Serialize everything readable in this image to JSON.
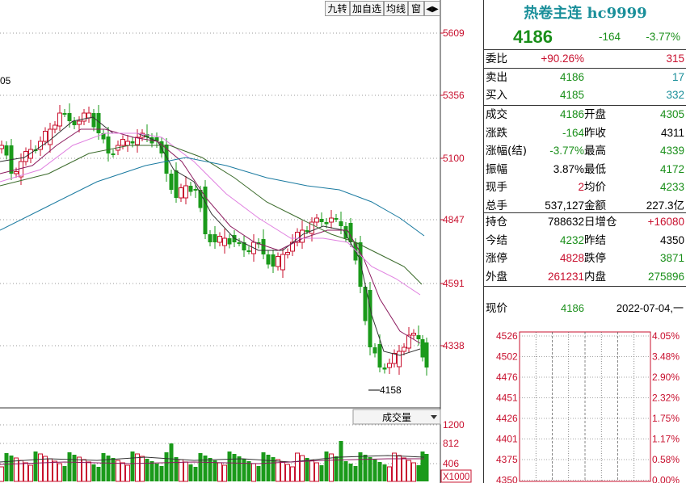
{
  "toolbar": {
    "btn1": "九转",
    "btn2": "加自选",
    "btn3": "均线",
    "btn4": "窗",
    "btn5": "◀▶"
  },
  "chart": {
    "y_labels": [
      "5609",
      "5356",
      "5100",
      "4847",
      "4591",
      "4338"
    ],
    "left_label": "05",
    "low_marker": "4158",
    "volume_dropdown": "成交量",
    "vol_labels": [
      "1200",
      "812",
      "406"
    ],
    "vol_unit": "X1000"
  },
  "panel": {
    "title": "热卷主连 hc9999",
    "price": "4186",
    "change": "-164",
    "change_pct": "-3.77%",
    "weibi_label": "委比",
    "weibi_value": "+90.26%",
    "weibi_diff": "315",
    "sell_label": "卖出",
    "sell_price": "4186",
    "sell_vol": "17",
    "buy_label": "买入",
    "buy_price": "4185",
    "buy_vol": "332",
    "stats": [
      {
        "l1": "成交",
        "v1": "4186",
        "c1": "green",
        "l2": "开盘",
        "v2": "4305",
        "c2": "green"
      },
      {
        "l1": "涨跌",
        "v1": "-164",
        "c1": "green",
        "l2": "昨收",
        "v2": "4311",
        "c2": "black"
      },
      {
        "l1": "涨幅(结)",
        "v1": "-3.77%",
        "c1": "green",
        "l2": "最高",
        "v2": "4339",
        "c2": "green"
      },
      {
        "l1": "振幅",
        "v1": "3.87%",
        "c1": "black",
        "l2": "最低",
        "v2": "4172",
        "c2": "green"
      },
      {
        "l1": "现手",
        "v1": "2",
        "c1": "red",
        "l2": "均价",
        "v2": "4233",
        "c2": "green"
      },
      {
        "l1": "总手",
        "v1": "537,127",
        "c1": "black",
        "l2": "金额",
        "v2": "227.3亿",
        "c2": "black"
      }
    ],
    "stats2": [
      {
        "l1": "持仓",
        "v1": "788632",
        "c1": "black",
        "l2": "日增仓",
        "v2": "+16080",
        "c2": "red"
      },
      {
        "l1": "今结",
        "v1": "4232",
        "c1": "green",
        "l2": "昨结",
        "v2": "4350",
        "c2": "black"
      },
      {
        "l1": "涨停",
        "v1": "4828",
        "c1": "red",
        "l2": "跌停",
        "v2": "3871",
        "c2": "green"
      },
      {
        "l1": "外盘",
        "v1": "261231",
        "c1": "red",
        "l2": "内盘",
        "v2": "275896",
        "c2": "green"
      }
    ],
    "now_label": "现价",
    "now_price": "4186",
    "date": "2022-07-04,一",
    "mini_left": [
      "4526",
      "4502",
      "4476",
      "4451",
      "4426",
      "4401",
      "4375",
      "4350"
    ],
    "mini_right": [
      "4.05%",
      "3.48%",
      "2.90%",
      "2.32%",
      "1.75%",
      "1.17%",
      "0.58%",
      "0.00%"
    ]
  },
  "colors": {
    "up": "#c8102e",
    "down": "#1a9a1a",
    "ma5": "#333333",
    "ma10": "#8b1a5e",
    "ma20": "#e080e0",
    "ma30": "#3a6a2a",
    "ma60": "#1a7aa0"
  }
}
